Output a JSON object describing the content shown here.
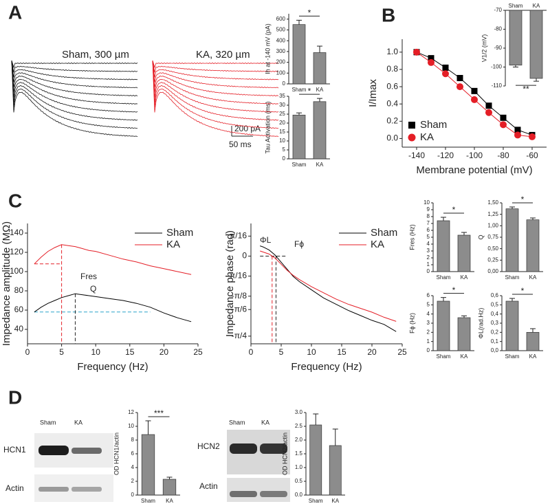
{
  "panel_labels": [
    "A",
    "B",
    "C",
    "D"
  ],
  "traces": {
    "sham_label": "Sham, 300 µm",
    "ka_label": "KA, 320 µm",
    "scale_current": "200 pA",
    "scale_time": "50 ms"
  },
  "blots": [
    {
      "lanes": [
        "Sham",
        "KA"
      ],
      "protein": "HCN1",
      "control": "Actin"
    },
    {
      "lanes": [
        "Sham",
        "KA"
      ],
      "protein": "HCN2",
      "control": "Actin"
    }
  ],
  "chart_data": [
    {
      "type": "bar",
      "ylabel": "Ih at -140 mV (pA)",
      "categories": [
        "Sham",
        "KA"
      ],
      "values": [
        550,
        290
      ],
      "errors": [
        40,
        60
      ],
      "color": "#8c8c8c",
      "ylim": [
        0,
        650
      ],
      "yticks": [
        0,
        100,
        200,
        300,
        400,
        500,
        600
      ],
      "significance": "*"
    },
    {
      "type": "bar",
      "ylabel": "Tau Activation (ms)",
      "categories": [
        "Sham",
        "KA"
      ],
      "values": [
        24.5,
        32
      ],
      "errors": [
        1.2,
        1.8
      ],
      "color": "#8c8c8c",
      "ylim": [
        0,
        35
      ],
      "yticks": [
        0,
        5,
        10,
        15,
        20,
        25,
        30,
        35
      ],
      "significance": "*"
    },
    {
      "type": "line",
      "xlabel": "Membrane potential (mV)",
      "ylabel": "I/Imax",
      "x": [
        -140,
        -130,
        -120,
        -110,
        -100,
        -90,
        -80,
        -70,
        -60
      ],
      "series": [
        {
          "name": "Sham",
          "color": "#000000",
          "marker": "square",
          "values": [
            1.0,
            0.93,
            0.82,
            0.7,
            0.55,
            0.38,
            0.24,
            0.1,
            0.04
          ]
        },
        {
          "name": "KA",
          "color": "#e41e26",
          "marker": "circle",
          "values": [
            1.0,
            0.88,
            0.75,
            0.6,
            0.45,
            0.3,
            0.16,
            0.04,
            0.02
          ]
        }
      ],
      "xlim": [
        -150,
        -50
      ],
      "ylim": [
        -0.1,
        1.15
      ],
      "xticks": [
        -140,
        -120,
        -100,
        -80,
        -60
      ],
      "yticks": [
        {
          "value": 0,
          "label": "0.0"
        },
        0.2,
        0.4,
        0.6,
        0.8,
        {
          "value": 1,
          "label": "1.0"
        }
      ],
      "legend": "lower left"
    },
    {
      "type": "bar",
      "ylabel": "V1/2 (mV)",
      "categories": [
        "Sham",
        "KA"
      ],
      "values": [
        -99,
        -106
      ],
      "errors": [
        1,
        1.5
      ],
      "color": "#8c8c8c",
      "ylim": [
        -110,
        -70
      ],
      "yticks": [
        -70,
        -80,
        -90,
        -100,
        -110
      ],
      "significance": "**"
    },
    {
      "type": "line",
      "xlabel": "Frequency (Hz)",
      "ylabel": "Impedance amplitude (MΩ)",
      "x": [
        1,
        2,
        3,
        4,
        5,
        6,
        7,
        8,
        9,
        10,
        12,
        14,
        16,
        18,
        20,
        22,
        24
      ],
      "series": [
        {
          "name": "Sham",
          "color": "#000000",
          "values": [
            58,
            63,
            67,
            70,
            73,
            75,
            77,
            76,
            75,
            74,
            72,
            70,
            67,
            63,
            57,
            52,
            48
          ]
        },
        {
          "name": "KA",
          "color": "#e41e26",
          "values": [
            108,
            115,
            121,
            125,
            128,
            127,
            126,
            124,
            122,
            121,
            117,
            113,
            110,
            106,
            103,
            100,
            97
          ]
        }
      ],
      "xlim": [
        0,
        25
      ],
      "ylim": [
        25,
        150
      ],
      "xticks": [
        0,
        5,
        10,
        15,
        20,
        25
      ],
      "yticks": [
        40,
        60,
        80,
        100,
        120,
        140
      ],
      "legend": "upper right",
      "annotations": [
        "Fres",
        "Q"
      ]
    },
    {
      "type": "line",
      "xlabel": "Frequency (Hz)",
      "ylabel": "Impedance phase (rad)",
      "x": [
        1.5,
        2,
        3,
        4,
        5,
        6,
        7,
        8,
        10,
        12,
        14,
        16,
        18,
        20,
        22,
        24
      ],
      "series": [
        {
          "name": "Sham",
          "color": "#000000",
          "values": [
            0.1,
            0.09,
            0.06,
            0.01,
            -0.06,
            -0.13,
            -0.2,
            -0.25,
            -0.33,
            -0.41,
            -0.47,
            -0.53,
            -0.58,
            -0.63,
            -0.67,
            -0.74
          ]
        },
        {
          "name": "KA",
          "color": "#e41e26",
          "values": [
            0.05,
            0.04,
            0.02,
            -0.02,
            -0.08,
            -0.14,
            -0.19,
            -0.23,
            -0.3,
            -0.36,
            -0.42,
            -0.47,
            -0.51,
            -0.55,
            -0.6,
            -0.64
          ]
        }
      ],
      "xlim": [
        0,
        25
      ],
      "ylim": [
        -0.86,
        0.32
      ],
      "xticks": [
        0,
        5,
        10,
        15,
        20,
        25
      ],
      "yticks": [
        {
          "value": 0.196,
          "label": "π/16"
        },
        0,
        {
          "value": -0.196,
          "label": "-π/16"
        },
        {
          "value": -0.393,
          "label": "-π/8"
        },
        {
          "value": -0.524,
          "label": "-π/6"
        },
        {
          "value": -0.785,
          "label": "-π/4"
        }
      ],
      "legend": "upper right",
      "annotations": [
        "ΦL",
        "Fϕ"
      ]
    },
    {
      "type": "bar",
      "ylabel": "Fres (Hz)",
      "categories": [
        "Sham",
        "KA"
      ],
      "values": [
        7.4,
        5.3
      ],
      "errors": [
        0.5,
        0.4
      ],
      "color": "#8c8c8c",
      "ylim": [
        0,
        10
      ],
      "yticks": [
        0,
        1,
        2,
        3,
        4,
        5,
        6,
        7,
        8,
        9,
        10
      ],
      "significance": "*"
    },
    {
      "type": "bar",
      "ylabel": "Q",
      "categories": [
        "Sham",
        "KA"
      ],
      "values": [
        1.37,
        1.13
      ],
      "errors": [
        0.04,
        0.04
      ],
      "color": "#8c8c8c",
      "ylim": [
        0,
        1.5
      ],
      "yticks": [
        {
          "value": 0,
          "label": "0,00"
        },
        {
          "value": 0.25,
          "label": "0,25"
        },
        {
          "value": 0.5,
          "label": "0,50"
        },
        {
          "value": 0.75,
          "label": "0,75"
        },
        {
          "value": 1,
          "label": "1,00"
        },
        {
          "value": 1.25,
          "label": "1,25"
        },
        {
          "value": 1.5,
          "label": "1,50"
        }
      ],
      "significance": "*"
    },
    {
      "type": "bar",
      "ylabel": "Fϕ (Hz)",
      "categories": [
        "Sham",
        "KA"
      ],
      "values": [
        5.4,
        3.6
      ],
      "errors": [
        0.4,
        0.2
      ],
      "color": "#8c8c8c",
      "ylim": [
        0,
        6
      ],
      "yticks": [
        0,
        1,
        2,
        3,
        4,
        5,
        6
      ],
      "significance": "*"
    },
    {
      "type": "bar",
      "ylabel": "ΦL(rad.Hz)",
      "categories": [
        "Sham",
        "KA"
      ],
      "values": [
        0.54,
        0.2
      ],
      "errors": [
        0.03,
        0.04
      ],
      "color": "#8c8c8c",
      "ylim": [
        0,
        0.6
      ],
      "yticks": [
        {
          "value": 0,
          "label": "0,0"
        },
        {
          "value": 0.1,
          "label": "0,1"
        },
        {
          "value": 0.2,
          "label": "0,2"
        },
        {
          "value": 0.3,
          "label": "0,3"
        },
        {
          "value": 0.4,
          "label": "0,4"
        },
        {
          "value": 0.5,
          "label": "0,5"
        },
        {
          "value": 0.6,
          "label": "0,6"
        }
      ],
      "significance": "*"
    },
    {
      "type": "bar",
      "ylabel": "OD HCN1/actin",
      "categories": [
        "Sham",
        "KA"
      ],
      "values": [
        8.8,
        2.3
      ],
      "errors": [
        2,
        0.3
      ],
      "color": "#8c8c8c",
      "ylim": [
        0,
        12
      ],
      "yticks": [
        0,
        2,
        4,
        6,
        8,
        10,
        12
      ],
      "significance": "***"
    },
    {
      "type": "bar",
      "ylabel": "OD HCN2/actin",
      "categories": [
        "Sham",
        "KA"
      ],
      "values": [
        2.55,
        1.8
      ],
      "errors": [
        0.4,
        0.6
      ],
      "color": "#8c8c8c",
      "ylim": [
        0,
        3
      ],
      "yticks": [
        {
          "value": 0,
          "label": "0.0"
        },
        0.5,
        {
          "value": 1,
          "label": "1.0"
        },
        1.5,
        {
          "value": 2,
          "label": "2.0"
        },
        2.5,
        {
          "value": 3,
          "label": "3.0"
        }
      ]
    }
  ]
}
